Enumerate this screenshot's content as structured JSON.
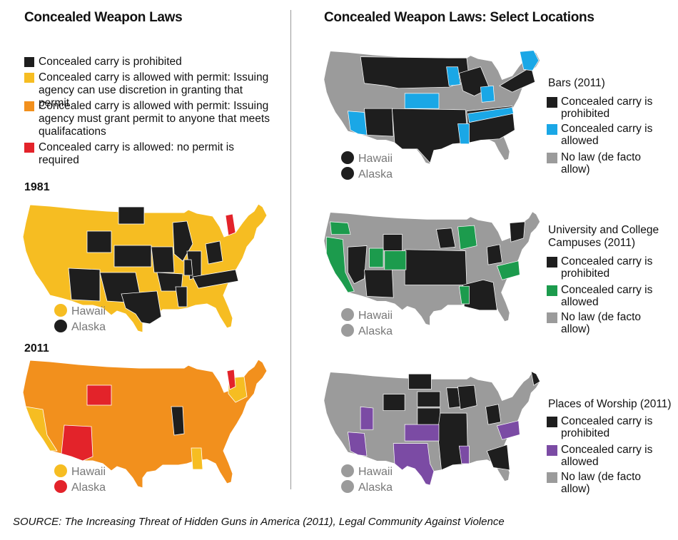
{
  "left": {
    "title": "Concealed Weapon Laws",
    "legend": [
      {
        "color": "#1e1e1e",
        "text": "Concealed carry is prohibited"
      },
      {
        "color": "#f6bd22",
        "text": "Concealed carry is allowed with permit: Issuing agency can use discretion in granting that permit"
      },
      {
        "color": "#f2901d",
        "text": "Concealed carry is allowed with permit: Issuing agency must grant permit to anyone that meets qualifacations"
      },
      {
        "color": "#e3232a",
        "text": "Concealed carry is allowed: no permit is required"
      }
    ],
    "maps": [
      {
        "year": "1981",
        "base_color": "#f6bd22",
        "hawaii": "Hawaii",
        "hawaii_color": "#f6bd22",
        "alaska": "Alaska",
        "alaska_color": "#1e1e1e"
      },
      {
        "year": "2011",
        "base_color": "#f2901d",
        "hawaii": "Hawaii",
        "hawaii_color": "#f6bd22",
        "alaska": "Alaska",
        "alaska_color": "#e3232a"
      }
    ]
  },
  "right": {
    "title": "Concealed Weapon Laws: Select Locations",
    "panels": [
      {
        "title": "Bars (2011)",
        "allowed_color": "#1aa7e6",
        "items": [
          {
            "color": "#1e1e1e",
            "text": "Concealed carry is prohibited"
          },
          {
            "color": "#1aa7e6",
            "text": "Concealed carry is allowed"
          },
          {
            "color": "#9b9b9b",
            "text": "No law (de facto allow)"
          }
        ],
        "hawaii": "Hawaii",
        "hawaii_color": "#1e1e1e",
        "alaska": "Alaska",
        "alaska_color": "#1e1e1e"
      },
      {
        "title": "University and College Campuses (2011)",
        "allowed_color": "#1c9b4d",
        "items": [
          {
            "color": "#1e1e1e",
            "text": "Concealed carry is prohibited"
          },
          {
            "color": "#1c9b4d",
            "text": "Concealed carry is allowed"
          },
          {
            "color": "#9b9b9b",
            "text": "No law (de facto allow)"
          }
        ],
        "hawaii": "Hawaii",
        "hawaii_color": "#9b9b9b",
        "alaska": "Alaska",
        "alaska_color": "#9b9b9b"
      },
      {
        "title": "Places of Worship (2011)",
        "allowed_color": "#7b4ba4",
        "items": [
          {
            "color": "#1e1e1e",
            "text": "Concealed carry is prohibited"
          },
          {
            "color": "#7b4ba4",
            "text": "Concealed carry is allowed"
          },
          {
            "color": "#9b9b9b",
            "text": "No law (de facto allow)"
          }
        ],
        "hawaii": "Hawaii",
        "hawaii_color": "#9b9b9b",
        "alaska": "Alaska",
        "alaska_color": "#9b9b9b"
      }
    ]
  },
  "source": "SOURCE: The Increasing Threat of Hidden Guns in America (2011), Legal Community Against Violence"
}
